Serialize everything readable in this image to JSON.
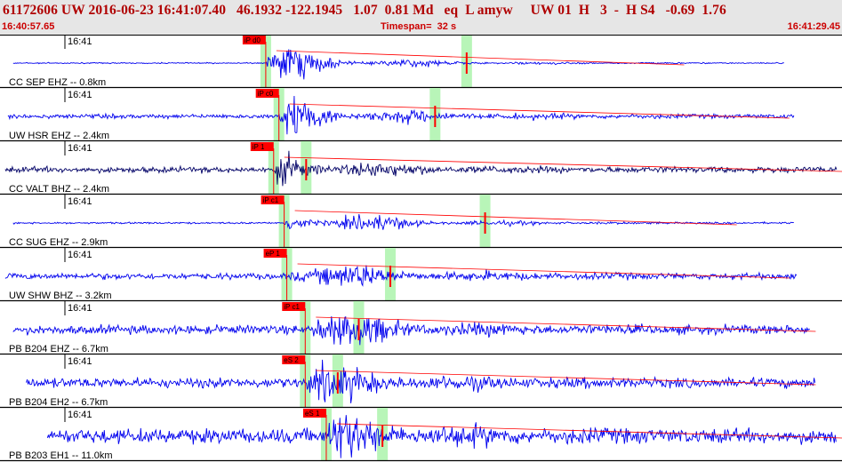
{
  "header": {
    "title": "61172606 UW 2016-06-23 16:41:07.40   46.1932 -122.1945   1.07  0.81 Md   eq  L amyw     UW 01  H   3  -  H S4   -0.69  1.76",
    "start_time": "16:40:57.65",
    "timespan": "Timespan=  32 s",
    "end_time": "16:41:29.45"
  },
  "colors": {
    "trace": "#0000ee",
    "trace_dark": "#000066",
    "pick": "#ff0000",
    "pick_window": "#b8f5b8",
    "header_text": "#cc0000"
  },
  "chart_data": {
    "type": "line",
    "xlim_seconds": [
      0,
      32
    ],
    "x_tick_label": "16:41",
    "channels": [
      {
        "label": "CC SEP EHZ -- 0.8km",
        "time": "16:41",
        "pick": "iP d0",
        "p_arrival_s": 10.1,
        "s_arrival_s": 17.6
      },
      {
        "label": "UW HSR EHZ -- 2.4km",
        "time": "16:41",
        "pick": "iP c0",
        "p_arrival_s": 10.6,
        "s_arrival_s": 16.4
      },
      {
        "label": "CC VALT BHZ -- 2.4km",
        "time": "16:41",
        "pick": "iP 1",
        "p_arrival_s": 10.4,
        "s_arrival_s": 11.5
      },
      {
        "label": "CC SUG EHZ -- 2.9km",
        "time": "16:41",
        "pick": "iP c1",
        "p_arrival_s": 10.8,
        "s_arrival_s": 18.3
      },
      {
        "label": "UW SHW BHZ -- 3.2km",
        "time": "16:41",
        "pick": "eP 1",
        "p_arrival_s": 10.9,
        "s_arrival_s": 14.7
      },
      {
        "label": "PB B204 EHZ -- 6.7km",
        "time": "16:41",
        "pick": "iP c1",
        "p_arrival_s": 11.6,
        "s_arrival_s": 13.5
      },
      {
        "label": "PB B204 EH2 -- 6.7km",
        "time": "16:41",
        "pick": "eS 2",
        "p_arrival_s": 11.6,
        "s_arrival_s": 12.7
      },
      {
        "label": "PB B203 EH1 -- 11.0km",
        "time": "16:41",
        "pick": "eS 1",
        "p_arrival_s": 12.4,
        "s_arrival_s": 14.4
      }
    ]
  }
}
